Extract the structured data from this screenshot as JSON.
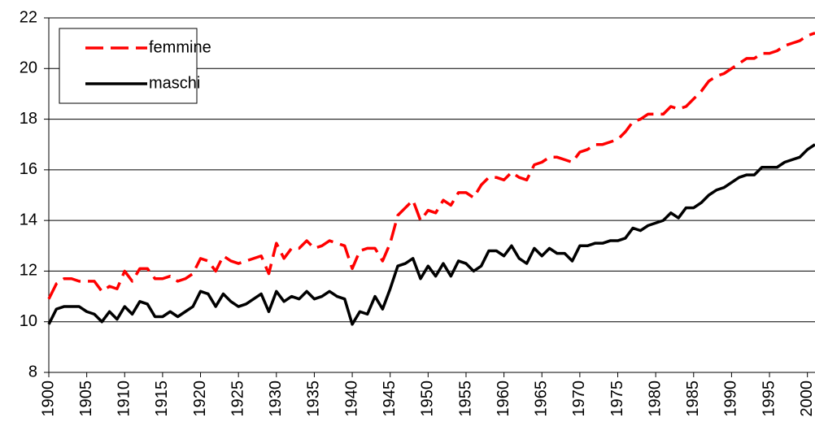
{
  "chart_data": {
    "type": "line",
    "x": [
      1900,
      1901,
      1902,
      1903,
      1904,
      1905,
      1906,
      1907,
      1908,
      1909,
      1910,
      1911,
      1912,
      1913,
      1914,
      1915,
      1916,
      1917,
      1918,
      1919,
      1920,
      1921,
      1922,
      1923,
      1924,
      1925,
      1926,
      1927,
      1928,
      1929,
      1930,
      1931,
      1932,
      1933,
      1934,
      1935,
      1936,
      1937,
      1938,
      1939,
      1940,
      1941,
      1942,
      1943,
      1944,
      1945,
      1946,
      1947,
      1948,
      1949,
      1950,
      1951,
      1952,
      1953,
      1954,
      1955,
      1956,
      1957,
      1958,
      1959,
      1960,
      1961,
      1962,
      1963,
      1964,
      1965,
      1966,
      1967,
      1968,
      1969,
      1970,
      1971,
      1972,
      1973,
      1974,
      1975,
      1976,
      1977,
      1978,
      1979,
      1980,
      1981,
      1982,
      1983,
      1984,
      1985,
      1986,
      1987,
      1988,
      1989,
      1990,
      1991,
      1992,
      1993,
      1994,
      1995,
      1996,
      1997,
      1998,
      1999,
      2000,
      2001
    ],
    "series": [
      {
        "name": "femmine",
        "color": "#ff0000",
        "dashed": true,
        "values": [
          10.9,
          11.5,
          11.7,
          11.7,
          11.6,
          11.6,
          11.6,
          11.2,
          11.4,
          11.3,
          12.0,
          11.6,
          12.1,
          12.1,
          11.7,
          11.7,
          11.8,
          11.6,
          11.7,
          11.9,
          12.5,
          12.4,
          12.0,
          12.6,
          12.4,
          12.3,
          12.4,
          12.5,
          12.6,
          11.9,
          13.1,
          12.5,
          12.9,
          12.9,
          13.2,
          12.9,
          13.0,
          13.2,
          13.1,
          13.0,
          12.1,
          12.8,
          12.9,
          12.9,
          12.4,
          13.1,
          14.2,
          14.5,
          14.8,
          14.0,
          14.4,
          14.3,
          14.8,
          14.6,
          15.1,
          15.1,
          14.9,
          15.4,
          15.7,
          15.7,
          15.6,
          15.9,
          15.7,
          15.6,
          16.2,
          16.3,
          16.5,
          16.5,
          16.4,
          16.3,
          16.7,
          16.8,
          17.0,
          17.0,
          17.1,
          17.2,
          17.5,
          17.9,
          18.0,
          18.2,
          18.2,
          18.2,
          18.5,
          18.4,
          18.5,
          18.8,
          19.1,
          19.5,
          19.7,
          19.8,
          20.0,
          20.2,
          20.4,
          20.4,
          20.6,
          20.6,
          20.7,
          20.9,
          21.0,
          21.1,
          21.3,
          21.4
        ]
      },
      {
        "name": "maschi",
        "color": "#000000",
        "dashed": false,
        "values": [
          9.9,
          10.5,
          10.6,
          10.6,
          10.6,
          10.4,
          10.3,
          10.0,
          10.4,
          10.1,
          10.6,
          10.3,
          10.8,
          10.7,
          10.2,
          10.2,
          10.4,
          10.2,
          10.4,
          10.6,
          11.2,
          11.1,
          10.6,
          11.1,
          10.8,
          10.6,
          10.7,
          10.9,
          11.1,
          10.4,
          11.2,
          10.8,
          11.0,
          10.9,
          11.2,
          10.9,
          11.0,
          11.2,
          11.0,
          10.9,
          9.9,
          10.4,
          10.3,
          11.0,
          10.5,
          11.3,
          12.2,
          12.3,
          12.5,
          11.7,
          12.2,
          11.8,
          12.3,
          11.8,
          12.4,
          12.3,
          12.0,
          12.2,
          12.8,
          12.8,
          12.6,
          13.0,
          12.5,
          12.3,
          12.9,
          12.6,
          12.9,
          12.7,
          12.7,
          12.4,
          13.0,
          13.0,
          13.1,
          13.1,
          13.2,
          13.2,
          13.3,
          13.7,
          13.6,
          13.8,
          13.9,
          14.0,
          14.3,
          14.1,
          14.5,
          14.5,
          14.7,
          15.0,
          15.2,
          15.3,
          15.5,
          15.7,
          15.8,
          15.8,
          16.1,
          16.1,
          16.1,
          16.3,
          16.4,
          16.5,
          16.8,
          17.0
        ]
      }
    ],
    "xlim": [
      1900,
      2001
    ],
    "xticks": [
      1900,
      1905,
      1910,
      1915,
      1920,
      1925,
      1930,
      1935,
      1940,
      1945,
      1950,
      1955,
      1960,
      1965,
      1970,
      1975,
      1980,
      1985,
      1990,
      1995,
      2000
    ],
    "ylim": [
      8,
      22
    ],
    "yticks": [
      8,
      10,
      12,
      14,
      16,
      18,
      20,
      22
    ],
    "grid": true,
    "legend": "top-left"
  }
}
